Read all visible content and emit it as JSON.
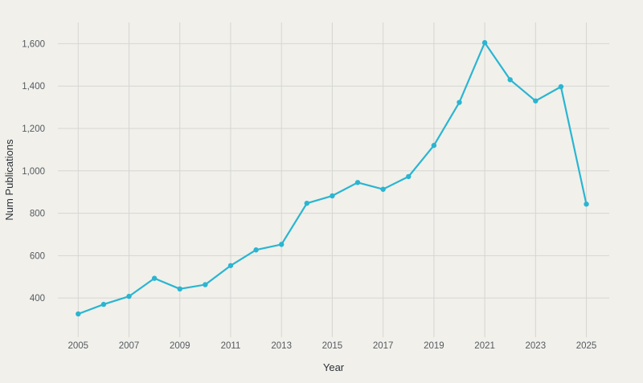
{
  "chart_data": {
    "type": "line",
    "title": "",
    "xlabel": "Year",
    "ylabel": "Num Publications",
    "x": [
      2005,
      2006,
      2007,
      2008,
      2009,
      2010,
      2011,
      2012,
      2013,
      2014,
      2015,
      2016,
      2017,
      2018,
      2019,
      2020,
      2021,
      2022,
      2023,
      2024,
      2025
    ],
    "series": [
      {
        "name": "Num Publications",
        "values": [
          325,
          370,
          408,
          493,
          443,
          463,
          553,
          627,
          653,
          847,
          882,
          945,
          913,
          973,
          1120,
          1323,
          1605,
          1430,
          1330,
          1397,
          843
        ]
      }
    ],
    "xticks": [
      "2005",
      "2007",
      "2009",
      "2011",
      "2013",
      "2015",
      "2017",
      "2019",
      "2021",
      "2023",
      "2025"
    ],
    "yticks": [
      "400",
      "600",
      "800",
      "1,000",
      "1,200",
      "1,400",
      "1,600"
    ],
    "ytick_values": [
      400,
      600,
      800,
      1000,
      1200,
      1400,
      1600
    ],
    "xlim": [
      2004.2,
      2025.9
    ],
    "ylim": [
      215,
      1700
    ],
    "grid": true,
    "legend": "none",
    "line_color": "#2ab5d1"
  }
}
